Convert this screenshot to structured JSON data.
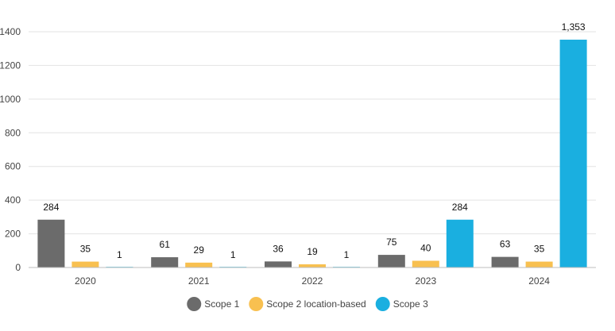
{
  "chart_data": {
    "type": "bar",
    "categories": [
      "2020",
      "2021",
      "2022",
      "2023",
      "2024"
    ],
    "series": [
      {
        "name": "Scope 1",
        "values": [
          284,
          61,
          36,
          75,
          63
        ],
        "color": "#6b6b6b"
      },
      {
        "name": "Scope 2 location-based",
        "values": [
          35,
          29,
          19,
          40,
          35
        ],
        "color": "#f8c050"
      },
      {
        "name": "Scope 3",
        "values": [
          1,
          1,
          1,
          284,
          1353
        ],
        "color": "#1aafe0"
      }
    ],
    "data_labels": [
      [
        "284",
        "35",
        "1"
      ],
      [
        "61",
        "29",
        "1"
      ],
      [
        "36",
        "19",
        "1"
      ],
      [
        "75",
        "40",
        "284"
      ],
      [
        "63",
        "35",
        "1,353"
      ]
    ],
    "ylim": [
      0,
      1400
    ],
    "yticks": [
      "0",
      "200",
      "400",
      "600",
      "800",
      "1000",
      "1200",
      "1400"
    ],
    "grid": true,
    "legend_position": "bottom"
  }
}
